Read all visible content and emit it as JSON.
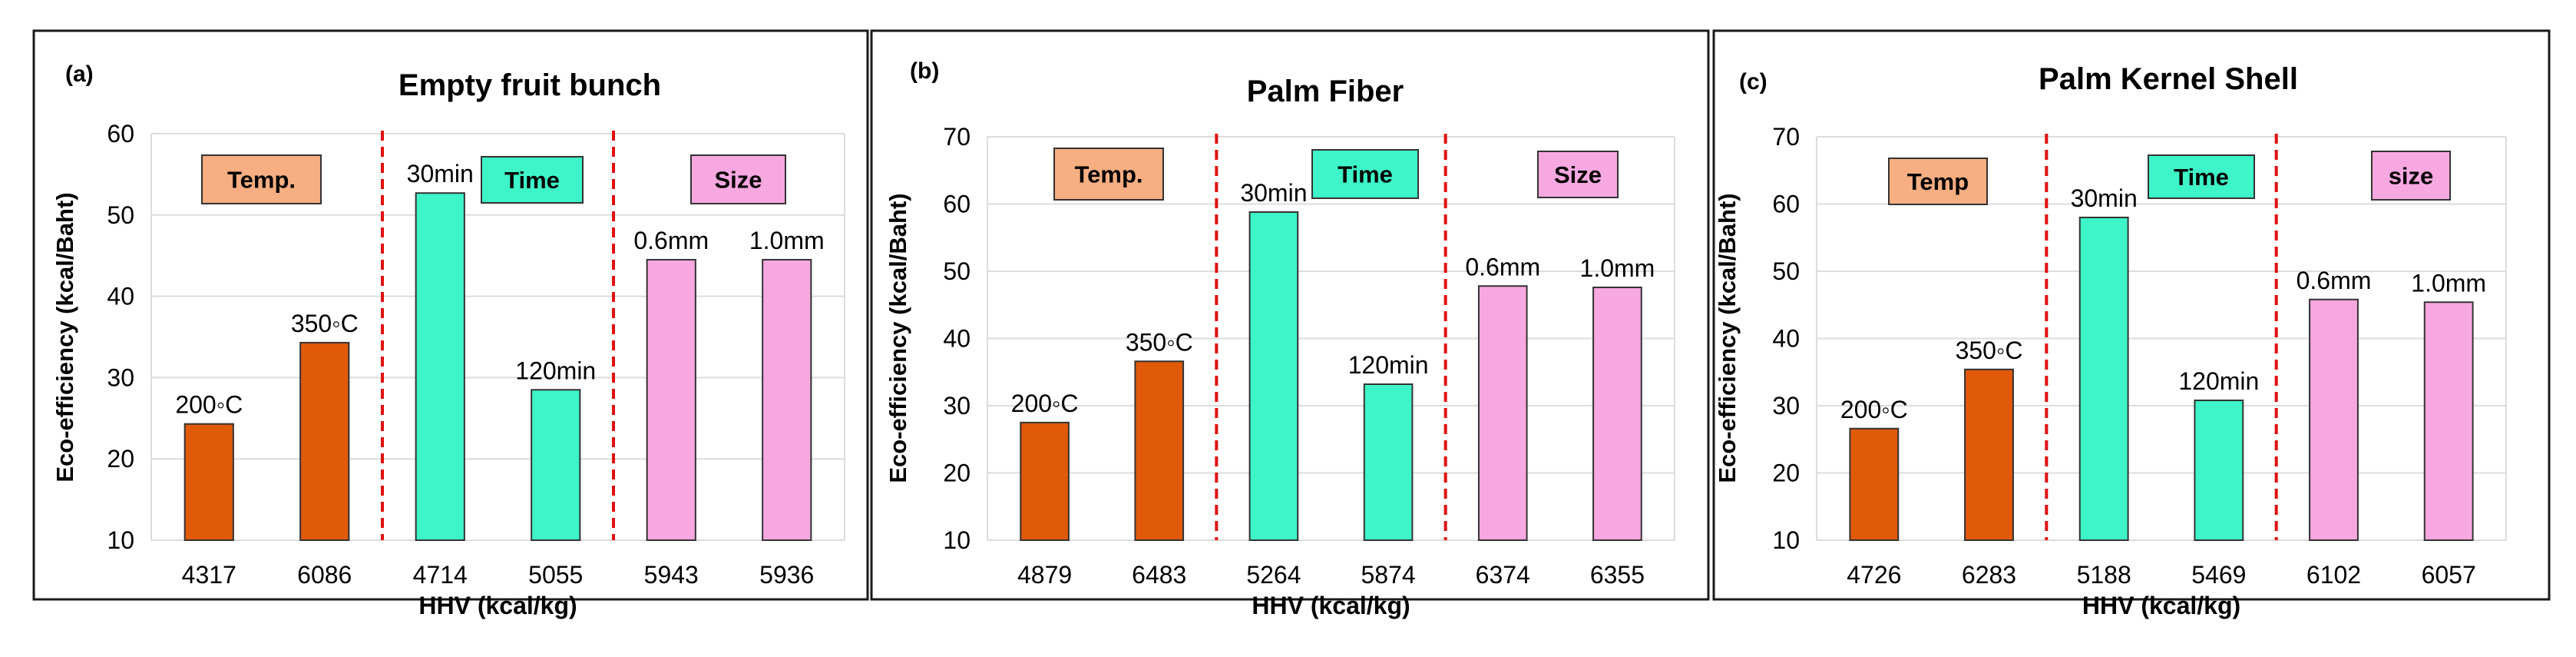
{
  "chart_data": [
    {
      "type": "bar",
      "panel_label": "(a)",
      "title": "Empty fruit bunch",
      "xlabel": "HHV (kcal/kg)",
      "ylabel": "Eco-efficiency (kcal/Baht)",
      "ylim": [
        10,
        60
      ],
      "ytick_step": 10,
      "grid": true,
      "categories": [
        "4317",
        "6086",
        "4714",
        "5055",
        "5943",
        "5936"
      ],
      "values": [
        24.3,
        34.3,
        52.7,
        28.5,
        44.5,
        44.5
      ],
      "data_labels": [
        "200◦C",
        "350◦C",
        "30min",
        "120min",
        "0.6mm",
        "1.0mm"
      ],
      "bar_groups": [
        "temp",
        "temp",
        "time",
        "time",
        "size",
        "size"
      ],
      "group_labels": {
        "temp": "Temp.",
        "time": "Time",
        "size": "Size"
      }
    },
    {
      "type": "bar",
      "panel_label": "(b)",
      "title": "Palm Fiber",
      "xlabel": "HHV (kcal/kg)",
      "ylabel": "Eco-efficiency (kcal/Baht)",
      "ylim": [
        10,
        70
      ],
      "ytick_step": 10,
      "grid": true,
      "categories": [
        "4879",
        "6483",
        "5264",
        "5874",
        "6374",
        "6355"
      ],
      "values": [
        27.5,
        36.6,
        58.8,
        33.2,
        47.8,
        47.6
      ],
      "data_labels": [
        "200◦C",
        "350◦C",
        "30min",
        "120min",
        "0.6mm",
        "1.0mm"
      ],
      "bar_groups": [
        "temp",
        "temp",
        "time",
        "time",
        "size",
        "size"
      ],
      "group_labels": {
        "temp": "Temp.",
        "time": "Time",
        "size": "Size"
      }
    },
    {
      "type": "bar",
      "panel_label": "(c)",
      "title": "Palm Kernel Shell",
      "xlabel": "HHV (kcal/kg)",
      "ylabel": "Eco-efficiency (kcal/Baht)",
      "ylim": [
        10,
        70
      ],
      "ytick_step": 10,
      "grid": true,
      "categories": [
        "4726",
        "6283",
        "5188",
        "5469",
        "6102",
        "6057"
      ],
      "values": [
        26.6,
        35.4,
        58.0,
        30.8,
        45.8,
        45.4
      ],
      "data_labels": [
        "200◦C",
        "350◦C",
        "30min",
        "120min",
        "0.6mm",
        "1.0mm"
      ],
      "bar_groups": [
        "temp",
        "temp",
        "time",
        "time",
        "size",
        "size"
      ],
      "group_labels": {
        "temp": "Temp",
        "time": "Time",
        "size": "size"
      }
    }
  ],
  "colors": {
    "temp_bar": "#e05a0a",
    "time_bar": "#3df5c8",
    "size_bar": "#f7a8e0",
    "temp_box": "#f6ae82",
    "time_box": "#3df5c8",
    "size_box": "#f7a8e0",
    "divider": "#e01010",
    "grid": "#dcdcdc",
    "frame": "#1a1a1a",
    "text": "#000000"
  }
}
